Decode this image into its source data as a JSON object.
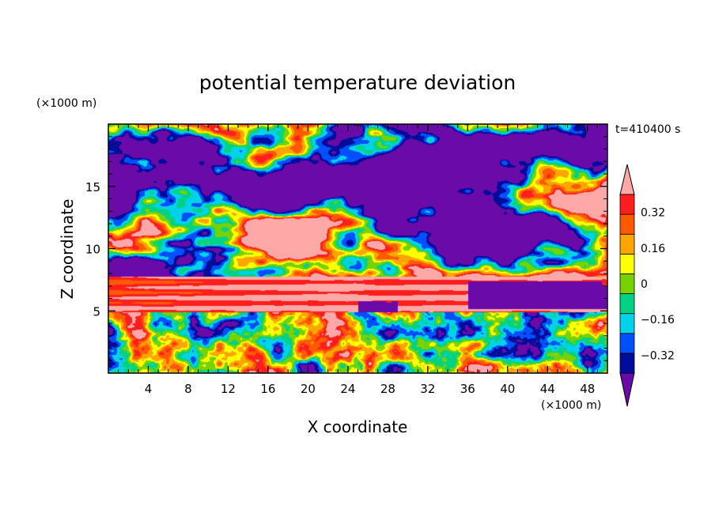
{
  "chart_data": {
    "type": "heatmap",
    "title": "potential temperature deviation",
    "xlabel": "X coordinate",
    "ylabel": "Z coordinate",
    "x_unit": "(×1000 m)",
    "y_unit": "(×1000 m)",
    "time_label": "t=410400 s",
    "xlim": [
      0,
      50
    ],
    "ylim": [
      0,
      20
    ],
    "x_ticks": [
      4,
      8,
      12,
      16,
      20,
      24,
      28,
      32,
      36,
      40,
      44,
      48
    ],
    "y_ticks": [
      5,
      10,
      15
    ],
    "colorbar": {
      "levels": [
        -0.4,
        -0.32,
        -0.24,
        -0.16,
        -0.08,
        0,
        0.08,
        0.16,
        0.24,
        0.32,
        0.4
      ],
      "colors": [
        "#6a0aa8",
        "#000c9a",
        "#0050ff",
        "#00d2e8",
        "#00d283",
        "#78d200",
        "#ffff00",
        "#ffa500",
        "#ff5a00",
        "#ff1e1e",
        "#ffa8a8"
      ],
      "tick_labels": [
        "0.32",
        "0.16",
        "0",
        "−0.16",
        "−0.32"
      ],
      "tick_values": [
        0.32,
        0.16,
        0,
        -0.16,
        -0.32
      ],
      "extend": "both"
    }
  }
}
